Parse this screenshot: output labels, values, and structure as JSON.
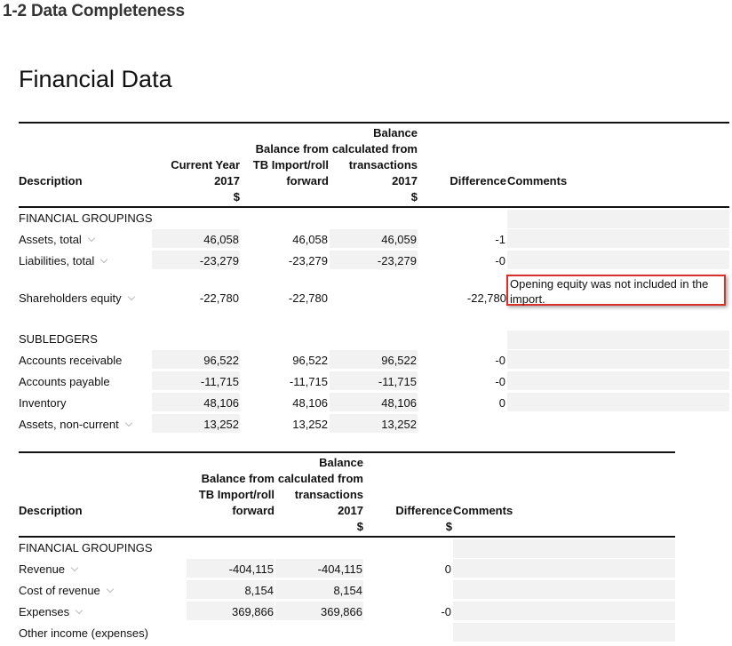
{
  "page_heading": "1-2 Data Completeness",
  "section_title": "Financial Data",
  "table1": {
    "headers": {
      "description": "Description",
      "current_year": [
        "Current Year",
        "2017",
        "$"
      ],
      "tb_import": [
        "Balance from",
        "TB Import/roll",
        "forward"
      ],
      "calculated": [
        "Balance",
        "calculated from",
        "transactions",
        "2017",
        "$"
      ],
      "difference": "Difference",
      "comments": "Comments"
    },
    "groups": [
      {
        "title": "FINANCIAL GROUPINGS",
        "rows": [
          {
            "label": "Assets, total",
            "current": "46,058",
            "tb": "46,058",
            "calc": "46,059",
            "diff": "-1"
          },
          {
            "label": "Liabilities, total",
            "current": "-23,279",
            "tb": "-23,279",
            "calc": "-23,279",
            "diff": "-0"
          },
          {
            "label": "Shareholders equity",
            "current": "-22,780",
            "tb": "-22,780",
            "calc": "",
            "diff": "-22,780"
          }
        ]
      },
      {
        "title": "SUBLEDGERS",
        "rows": [
          {
            "label": "Accounts receivable",
            "current": "96,522",
            "tb": "96,522",
            "calc": "96,522",
            "diff": "-0"
          },
          {
            "label": "Accounts payable",
            "current": "-11,715",
            "tb": "-11,715",
            "calc": "-11,715",
            "diff": "-0"
          },
          {
            "label": "Inventory",
            "current": "48,106",
            "tb": "48,106",
            "calc": "48,106",
            "diff": "0"
          },
          {
            "label": "Assets, non-current",
            "current": "13,252",
            "tb": "13,252",
            "calc": "13,252",
            "diff": ""
          }
        ]
      }
    ],
    "comment_text": "Opening equity was not included in the import."
  },
  "table2": {
    "headers": {
      "description": "Description",
      "tb_import": [
        "Balance from",
        "TB Import/roll",
        "forward"
      ],
      "calculated": [
        "Balance",
        "calculated from",
        "transactions",
        "2017",
        "$"
      ],
      "difference": "Difference",
      "difference_unit": "$",
      "comments": "Comments"
    },
    "group_title": "FINANCIAL GROUPINGS",
    "rows": [
      {
        "label": "Revenue",
        "tb": "-404,115",
        "calc": "-404,115",
        "diff": "0"
      },
      {
        "label": "Cost of revenue",
        "tb": "8,154",
        "calc": "8,154",
        "diff": ""
      },
      {
        "label": "Expenses",
        "tb": "369,866",
        "calc": "369,866",
        "diff": "-0"
      },
      {
        "label": "Other income (expenses)",
        "tb": "",
        "calc": "",
        "diff": ""
      }
    ]
  },
  "colors": {
    "accent_red": "#d9302c",
    "cell_gray": "#f2f2f2"
  }
}
